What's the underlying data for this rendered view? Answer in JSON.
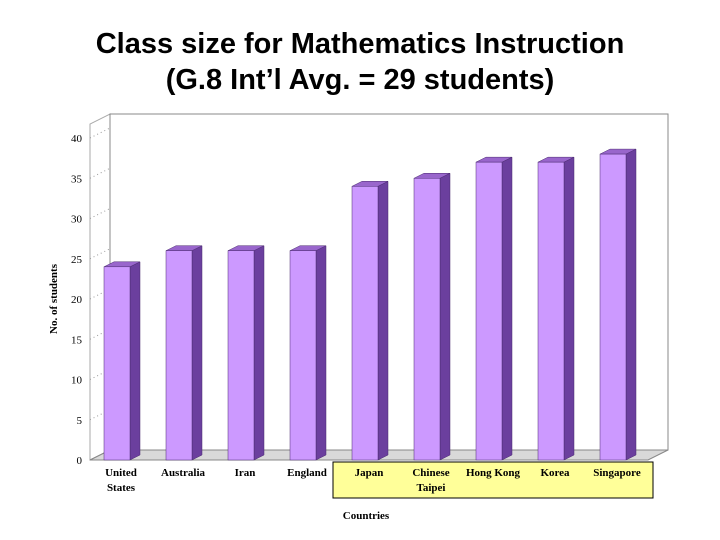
{
  "title": {
    "line1": "Class size for Mathematics Instruction",
    "line2": "(G.8 Int’l Avg. = 29 students)"
  },
  "chart_data": {
    "type": "bar",
    "categories": [
      [
        "United",
        "States"
      ],
      [
        "Australia"
      ],
      [
        "Iran"
      ],
      [
        "England"
      ],
      [
        "Japan"
      ],
      [
        "Chinese",
        "Taipei"
      ],
      [
        "Hong Kong"
      ],
      [
        "Korea"
      ],
      [
        "Singapore"
      ]
    ],
    "values": [
      24,
      26,
      26,
      26,
      34,
      35,
      37,
      37,
      38
    ],
    "ylim": [
      0,
      40
    ],
    "yticks": [
      0,
      5,
      10,
      15,
      20,
      25,
      30,
      35,
      40
    ],
    "xlabel": "Countries",
    "ylabel": "No. of students",
    "highlighted_categories": [
      4,
      5,
      6,
      7,
      8
    ],
    "bar_color": "#cc99ff",
    "highlight_box_color": "#ffff99",
    "style": "3d-bar"
  }
}
